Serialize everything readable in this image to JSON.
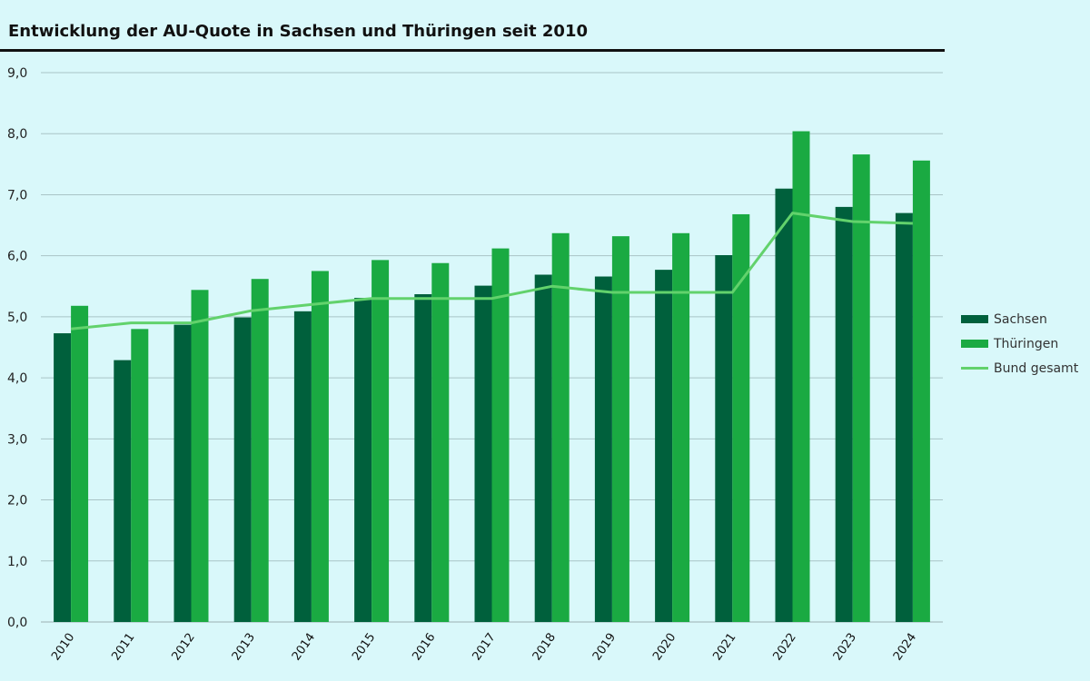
{
  "chart_data": {
    "type": "bar",
    "title": "Entwicklung der AU-Quote in Sachsen und Thüringen seit 2010",
    "xlabel": "",
    "ylabel": "",
    "ylim": [
      0,
      9
    ],
    "yticks": [
      "0,0",
      "1,0",
      "2,0",
      "3,0",
      "4,0",
      "5,0",
      "6,0",
      "7,0",
      "8,0",
      "9,0"
    ],
    "grid": true,
    "legend_position": "right",
    "categories": [
      "2010",
      "2011",
      "2012",
      "2013",
      "2014",
      "2015",
      "2016",
      "2017",
      "2018",
      "2019",
      "2020",
      "2021",
      "2022",
      "2023",
      "2024"
    ],
    "series": [
      {
        "name": "Sachsen",
        "type": "bar",
        "color": "#00603c",
        "values": [
          4.73,
          4.29,
          4.87,
          4.99,
          5.09,
          5.31,
          5.37,
          5.51,
          5.69,
          5.66,
          5.77,
          6.01,
          7.1,
          6.8,
          6.7
        ]
      },
      {
        "name": "Thüringen",
        "type": "bar",
        "color": "#1aaa42",
        "values": [
          5.18,
          4.8,
          5.44,
          5.62,
          5.75,
          5.93,
          5.88,
          6.12,
          6.37,
          6.32,
          6.37,
          6.68,
          8.04,
          7.66,
          7.56
        ]
      },
      {
        "name": "Bund gesamt",
        "type": "line",
        "color": "#62d26c",
        "values": [
          4.8,
          4.9,
          4.9,
          5.1,
          5.2,
          5.3,
          5.3,
          5.3,
          5.5,
          5.4,
          5.4,
          5.4,
          6.7,
          6.56,
          6.53
        ]
      }
    ]
  }
}
